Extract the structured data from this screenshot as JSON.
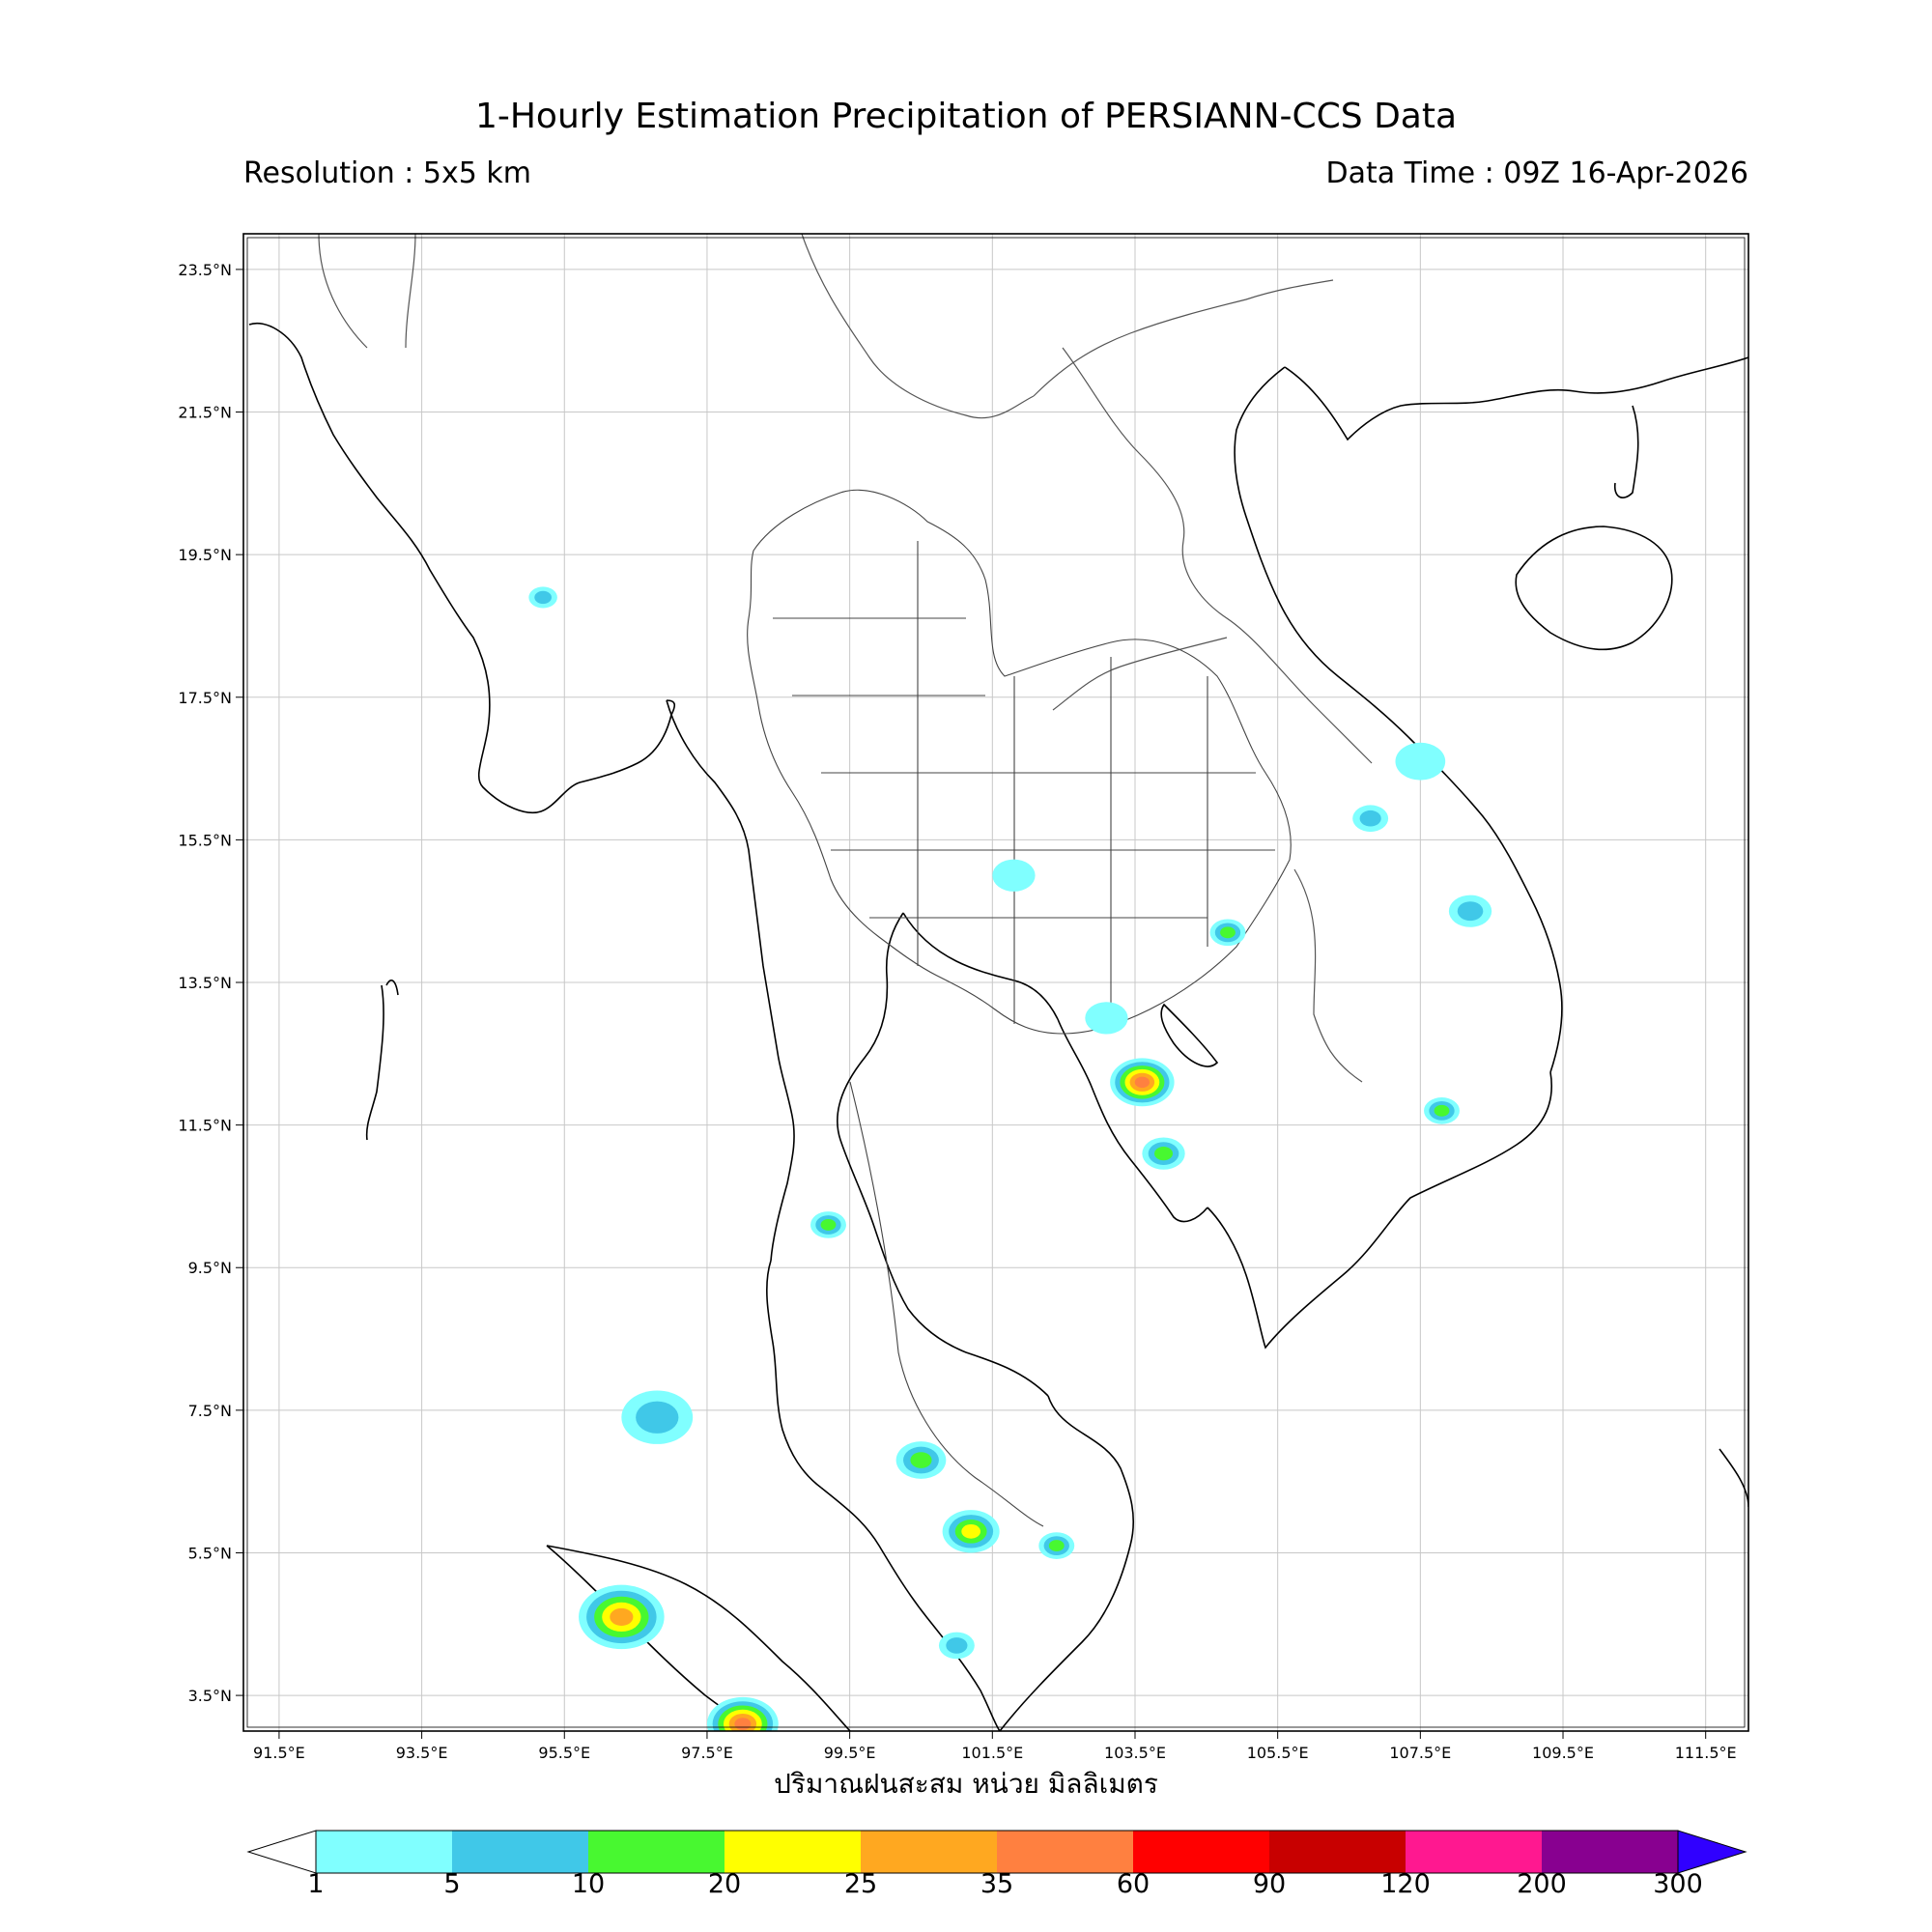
{
  "title": "1-Hourly Estimation Precipitation of PERSIANN-CCS Data",
  "resolution_text": "Resolution : 5x5 km",
  "data_time_text": "Data Time : 09Z 16-Apr-2026",
  "xaxis_caption": "ปริมาณฝนสะสม หน่วย มิลลิเมตร",
  "lon_ticks": [
    "91.5°E",
    "93.5°E",
    "95.5°E",
    "97.5°E",
    "99.5°E",
    "101.5°E",
    "103.5°E",
    "105.5°E",
    "107.5°E",
    "109.5°E",
    "111.5°E"
  ],
  "lat_ticks": [
    "23.5°N",
    "21.5°N",
    "19.5°N",
    "17.5°N",
    "15.5°N",
    "13.5°N",
    "11.5°N",
    "9.5°N",
    "7.5°N",
    "5.5°N",
    "3.5°N"
  ],
  "map_extent": {
    "lon": [
      91.0,
      112.1
    ],
    "lat": [
      3.0,
      24.0
    ]
  },
  "colorbar": {
    "labels": [
      "1",
      "5",
      "10",
      "20",
      "25",
      "35",
      "60",
      "90",
      "120",
      "200",
      "300"
    ],
    "colors": [
      "#80ffff",
      "#40c8e8",
      "#48f830",
      "#ffff00",
      "#ffa820",
      "#ff8040",
      "#ff0000",
      "#c80000",
      "#ff1890",
      "#880090"
    ],
    "under_color": "#ffffff",
    "over_color": "#3000ff"
  },
  "rain_cells": [
    {
      "lon": 103.6,
      "lat": 12.1,
      "r": 0.45,
      "level": 5
    },
    {
      "lon": 103.9,
      "lat": 11.1,
      "r": 0.3,
      "level": 2
    },
    {
      "lon": 104.8,
      "lat": 14.2,
      "r": 0.25,
      "level": 2
    },
    {
      "lon": 101.2,
      "lat": 5.8,
      "r": 0.4,
      "level": 3
    },
    {
      "lon": 100.5,
      "lat": 6.8,
      "r": 0.35,
      "level": 2
    },
    {
      "lon": 102.4,
      "lat": 5.6,
      "r": 0.25,
      "level": 2
    },
    {
      "lon": 96.3,
      "lat": 4.6,
      "r": 0.6,
      "level": 4
    },
    {
      "lon": 98.0,
      "lat": 3.1,
      "r": 0.5,
      "level": 5
    },
    {
      "lon": 96.8,
      "lat": 7.4,
      "r": 0.5,
      "level": 1
    },
    {
      "lon": 99.2,
      "lat": 10.1,
      "r": 0.25,
      "level": 2
    },
    {
      "lon": 108.2,
      "lat": 14.5,
      "r": 0.3,
      "level": 1
    },
    {
      "lon": 107.8,
      "lat": 11.7,
      "r": 0.25,
      "level": 2
    },
    {
      "lon": 106.8,
      "lat": 15.8,
      "r": 0.25,
      "level": 1
    },
    {
      "lon": 107.5,
      "lat": 16.6,
      "r": 0.35,
      "level": 0
    },
    {
      "lon": 101.8,
      "lat": 15.0,
      "r": 0.3,
      "level": 0
    },
    {
      "lon": 103.1,
      "lat": 13.0,
      "r": 0.3,
      "level": 0
    },
    {
      "lon": 95.2,
      "lat": 18.9,
      "r": 0.2,
      "level": 1
    },
    {
      "lon": 101.0,
      "lat": 4.2,
      "r": 0.25,
      "level": 1
    }
  ]
}
